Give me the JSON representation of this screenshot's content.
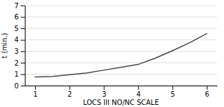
{
  "chart_data": {
    "type": "line",
    "x": [
      1,
      1.5,
      2,
      2.5,
      3,
      3.5,
      4,
      4.5,
      5,
      5.5,
      6
    ],
    "values": [
      0.75,
      0.8,
      0.95,
      1.1,
      1.35,
      1.6,
      1.85,
      2.4,
      3.05,
      3.75,
      4.55
    ],
    "color": "#444444",
    "xlabel": "LOCS III NO/NC SCALE",
    "ylabel": "t (min.)",
    "xlim": [
      0.7,
      6.3
    ],
    "ylim": [
      0,
      7
    ],
    "xticks": [
      1,
      2,
      3,
      4,
      5,
      6
    ],
    "yticks": [
      0,
      1,
      2,
      3,
      4,
      5,
      6,
      7
    ],
    "grid": true
  }
}
